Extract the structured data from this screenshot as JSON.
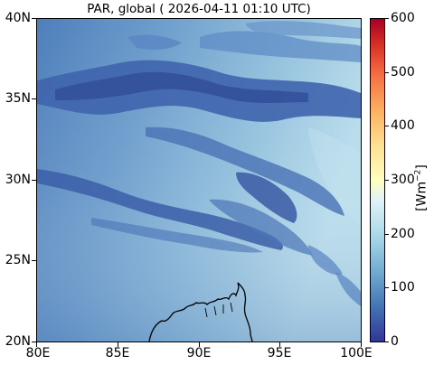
{
  "title": "PAR, global ( 2026-04-11 01:10 UTC)",
  "map": {
    "lat_labels": [
      "40N",
      "35N",
      "30N",
      "25N",
      "20N"
    ],
    "lon_labels": [
      "80E",
      "85E",
      "90E",
      "95E",
      "100E"
    ],
    "extent": {
      "lon_min": 80,
      "lon_max": 100,
      "lat_min": 20,
      "lat_max": 40
    }
  },
  "colorbar": {
    "tick_labels": [
      "600",
      "500",
      "400",
      "300",
      "200",
      "100",
      "0"
    ],
    "unit_prefix": "[Wm",
    "unit_exp": "−2",
    "unit_suffix": "]",
    "range": [
      0,
      600
    ],
    "colormap": "RdYlBu_r"
  }
}
